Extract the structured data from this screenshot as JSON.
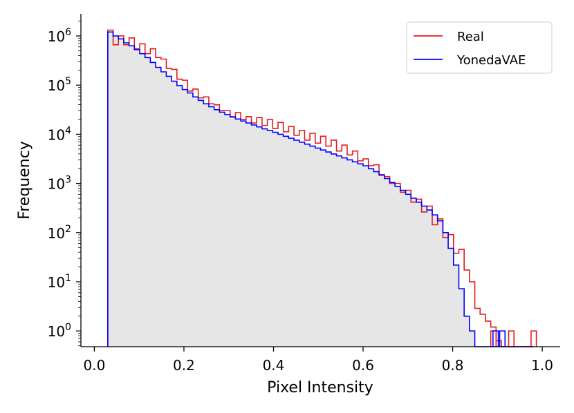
{
  "chart_data": {
    "type": "area",
    "title": "",
    "xlabel": "Pixel Intensity",
    "ylabel": "Frequency",
    "xlim": [
      -0.03,
      1.04
    ],
    "ylim_log10": [
      -0.32,
      6.45
    ],
    "y_scale": "log",
    "grid": false,
    "legend_position": "top-right",
    "x_ticks": [
      0.0,
      0.2,
      0.4,
      0.6,
      0.8,
      1.0
    ],
    "x_tick_labels": [
      "0.0",
      "0.2",
      "0.4",
      "0.6",
      "0.8",
      "1.0"
    ],
    "y_ticks_exp": [
      0,
      1,
      2,
      3,
      4,
      5,
      6
    ],
    "y_tick_base": "10",
    "colors": {
      "Real": "#e31a1c",
      "YonedaVAE": "#0000ff",
      "fill": "#e6e6e6"
    },
    "series": [
      {
        "name": "Real",
        "x": [
          0.03,
          0.98
        ],
        "log10_values": [
          6.12,
          5.82,
          6.0,
          5.82,
          5.96,
          5.74,
          5.84,
          5.64,
          5.74,
          5.56,
          5.53,
          5.34,
          5.32,
          5.12,
          5.1,
          4.88,
          4.92,
          4.74,
          4.76,
          4.62,
          4.6,
          4.48,
          4.48,
          4.36,
          4.44,
          4.3,
          4.36,
          4.23,
          4.34,
          4.18,
          4.3,
          4.12,
          4.24,
          4.05,
          4.16,
          3.98,
          4.08,
          3.88,
          4.02,
          3.82,
          3.96,
          3.76,
          3.88,
          3.66,
          3.78,
          3.58,
          3.66,
          3.46,
          3.5,
          3.36,
          3.38,
          3.18,
          3.14,
          3.0,
          3.0,
          2.82,
          2.86,
          2.62,
          2.68,
          2.42,
          2.54,
          2.16,
          2.28,
          1.9,
          1.96,
          1.58,
          1.66,
          1.24,
          1.0,
          0.46,
          0.34,
          0.2,
          0.08,
          -0.2,
          -0.4,
          -0.4,
          -0.4,
          -0.4,
          -0.4,
          -0.4
        ],
        "isolated_log10_values": [
          {
            "x": 0.885,
            "v": 0.0
          },
          {
            "x": 0.925,
            "v": 0.0
          },
          {
            "x": 0.975,
            "v": 0.0
          }
        ]
      },
      {
        "name": "YonedaVAE",
        "x": [
          0.03,
          0.98
        ],
        "log10_values": [
          6.08,
          6.0,
          5.94,
          5.86,
          5.8,
          5.72,
          5.64,
          5.56,
          5.46,
          5.36,
          5.27,
          5.18,
          5.08,
          4.99,
          4.91,
          4.84,
          4.76,
          4.69,
          4.62,
          4.56,
          4.5,
          4.45,
          4.4,
          4.35,
          4.31,
          4.27,
          4.23,
          4.19,
          4.15,
          4.11,
          4.08,
          4.04,
          4.0,
          3.96,
          3.92,
          3.88,
          3.84,
          3.8,
          3.76,
          3.72,
          3.68,
          3.64,
          3.6,
          3.56,
          3.52,
          3.48,
          3.44,
          3.4,
          3.36,
          3.3,
          3.24,
          3.17,
          3.1,
          3.02,
          2.94,
          2.86,
          2.78,
          2.7,
          2.62,
          2.54,
          2.46,
          2.36,
          2.24,
          2.0,
          1.68,
          1.34,
          0.86,
          0.3,
          0.0,
          -0.4,
          -0.4,
          -0.4,
          -0.4,
          -0.4,
          -0.4,
          -0.4,
          -0.4,
          -0.4,
          -0.4,
          -0.4
        ],
        "isolated_log10_values": [
          {
            "x": 0.89,
            "v": 0.0
          },
          {
            "x": 0.905,
            "v": 0.0
          }
        ]
      }
    ],
    "legend": [
      {
        "label": "Real",
        "color": "#e31a1c"
      },
      {
        "label": "YonedaVAE",
        "color": "#0000ff"
      }
    ]
  }
}
